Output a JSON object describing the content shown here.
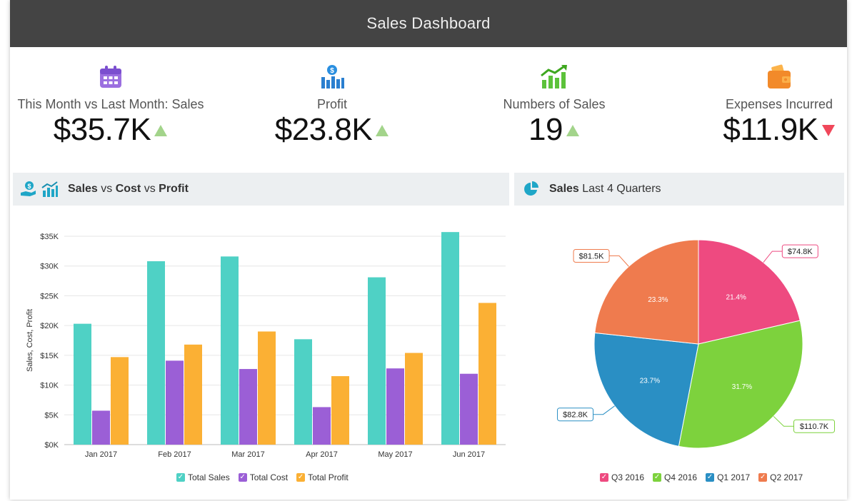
{
  "header": {
    "title": "Sales Dashboard"
  },
  "kpis": [
    {
      "label": "This Month vs Last Month: Sales",
      "value": "$35.7K",
      "trend": "up",
      "icon": "calendar-icon"
    },
    {
      "label": "Profit",
      "value": "$23.8K",
      "trend": "up",
      "icon": "profit-chart-icon"
    },
    {
      "label": "Numbers of Sales",
      "value": "19",
      "trend": "up",
      "icon": "growth-chart-icon"
    },
    {
      "label": "Expenses Incurred",
      "value": "$11.9K",
      "trend": "down",
      "icon": "wallet-icon"
    }
  ],
  "panels": {
    "bar": {
      "title_strong_1": "Sales",
      "title_mid_1": " vs ",
      "title_strong_2": "Cost",
      "title_mid_2": " vs ",
      "title_strong_3": "Profit"
    },
    "pie": {
      "title_strong": "Sales",
      "title_rest": " Last 4 Quarters"
    }
  },
  "colors": {
    "sales": "#4fd1c5",
    "cost": "#9b5fd6",
    "profit": "#fbb034",
    "up": "#a3d48b",
    "down": "#f0475a",
    "q3_2016": "#ee4a80",
    "q4_2016": "#7dd23d",
    "q1_2017": "#2a8fc4",
    "q2_2017": "#ef7b4e"
  },
  "chart_data": [
    {
      "type": "bar",
      "categories": [
        "Jan 2017",
        "Feb 2017",
        "Mar 2017",
        "Apr 2017",
        "May 2017",
        "Jun 2017"
      ],
      "series": [
        {
          "name": "Total Sales",
          "values": [
            20300,
            30800,
            31600,
            17700,
            28100,
            35700
          ]
        },
        {
          "name": "Total Cost",
          "values": [
            5700,
            14100,
            12700,
            6300,
            12800,
            11900
          ]
        },
        {
          "name": "Total Profit",
          "values": [
            14700,
            16800,
            19000,
            11500,
            15400,
            23800
          ]
        }
      ],
      "ylabel": "Sales, Cost, Profit",
      "ylim": [
        0,
        35000
      ],
      "yticks": [
        "$0K",
        "$5K",
        "$10K",
        "$15K",
        "$20K",
        "$25K",
        "$30K",
        "$35K"
      ],
      "grid": true,
      "legend": "bottom-center"
    },
    {
      "type": "pie",
      "slices": [
        {
          "name": "Q3 2016",
          "value": 74.8,
          "value_label": "$74.8K",
          "percent_label": "21.4%"
        },
        {
          "name": "Q4 2016",
          "value": 110.7,
          "value_label": "$110.7K",
          "percent_label": "31.7%"
        },
        {
          "name": "Q1 2017",
          "value": 82.8,
          "value_label": "$82.8K",
          "percent_label": "23.7%"
        },
        {
          "name": "Q2 2017",
          "value": 81.5,
          "value_label": "$81.5K",
          "percent_label": "23.3%"
        }
      ],
      "legend": "bottom-center"
    }
  ]
}
